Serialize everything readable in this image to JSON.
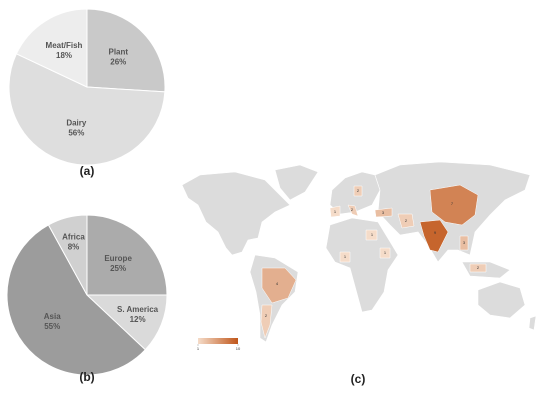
{
  "chart_data": [
    {
      "type": "pie",
      "title": "(a)",
      "categories": [
        "Plant",
        "Dairy",
        "Meat/Fish"
      ],
      "values": [
        26,
        56,
        18
      ],
      "value_labels": [
        "26%",
        "56%",
        "18%"
      ],
      "colors": [
        "#c9c9c9",
        "#dedede",
        "#ededed"
      ]
    },
    {
      "type": "pie",
      "title": "(b)",
      "categories": [
        "Europe",
        "S. America",
        "Asia",
        "Africa"
      ],
      "values": [
        25,
        12,
        55,
        8
      ],
      "value_labels": [
        "25%",
        "12%",
        "55%",
        "8%"
      ],
      "colors": [
        "#ababab",
        "#dadada",
        "#9c9c9c",
        "#d0d0d0"
      ]
    },
    {
      "type": "map",
      "title": "(c)",
      "values": [
        7,
        9,
        4,
        2,
        1,
        2,
        3,
        2,
        1,
        1,
        3,
        2,
        1,
        2
      ],
      "clim": [
        1,
        10
      ],
      "cticks": [
        1,
        10
      ],
      "colors": [
        "#f5dcc9",
        "#c0561a"
      ]
    }
  ]
}
